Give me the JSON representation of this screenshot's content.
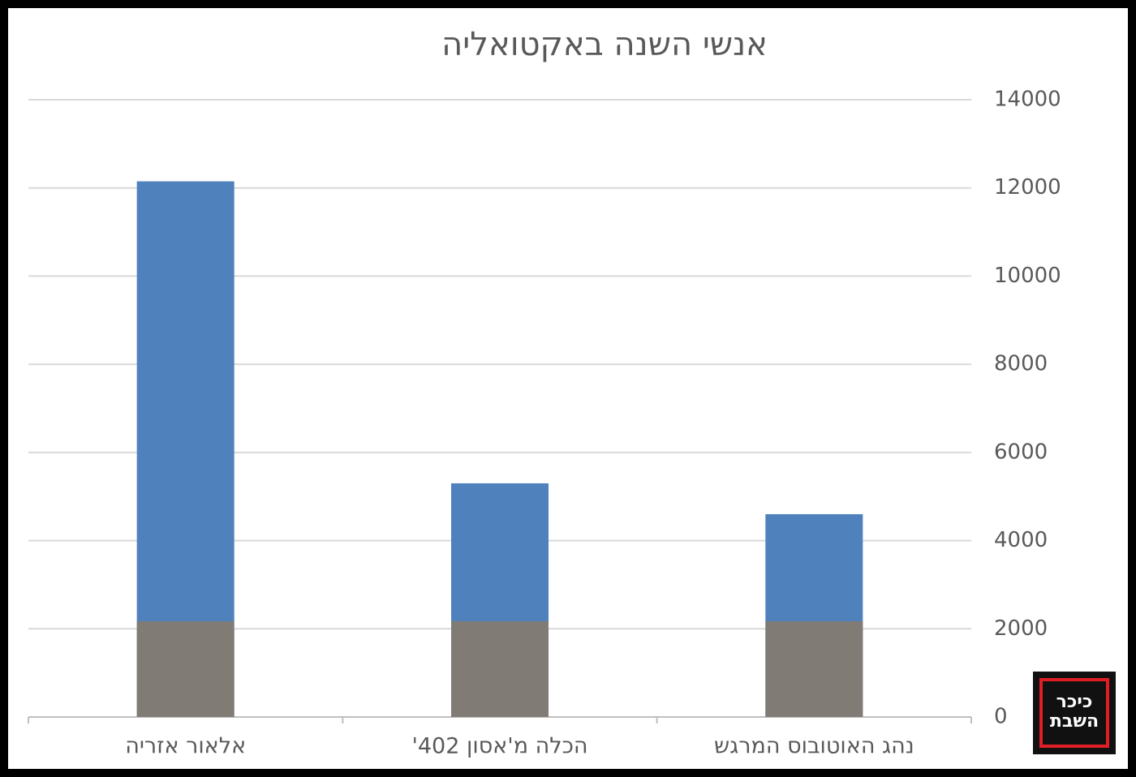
{
  "chart_data": {
    "type": "bar",
    "title": "אנשי השנה באקטואליה",
    "categories": [
      "אלאור אזריה",
      "הכלה מ'אסון 402'",
      "נהג האוטובוס המרגש"
    ],
    "values": [
      12150,
      5300,
      4600
    ],
    "color": "#4f81bd",
    "ylim": [
      0,
      14000
    ],
    "yticks": [
      0,
      2000,
      4000,
      6000,
      8000,
      10000,
      12000,
      14000
    ],
    "grid": true,
    "logo": [
      "כיכר",
      "השבת"
    ]
  }
}
